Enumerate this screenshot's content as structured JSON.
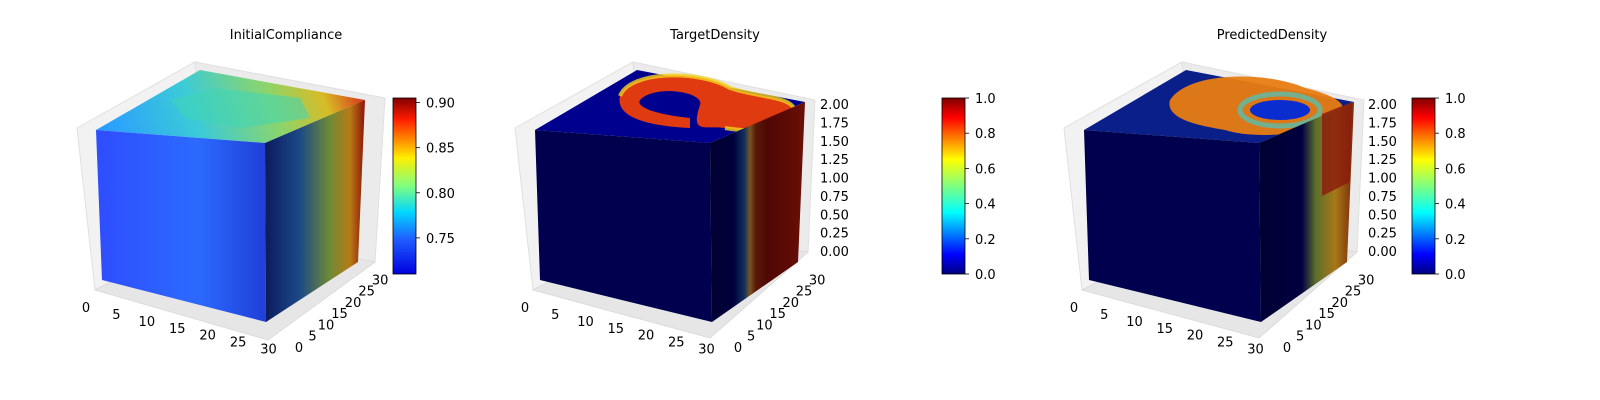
{
  "chart_data": [
    {
      "type": "heatmap",
      "subtype": "3d-voxel",
      "title": "InitialCompliance",
      "colormap": "jet",
      "x_ticks": [
        "0",
        "5",
        "10",
        "15",
        "20",
        "25",
        "30"
      ],
      "y_ticks": [
        "0",
        "5",
        "10",
        "15",
        "20",
        "25",
        "30"
      ],
      "z_ticks": [],
      "xlim": [
        0,
        32
      ],
      "ylim": [
        0,
        32
      ],
      "colorbar": {
        "ticks": [
          "0.75",
          "0.80",
          "0.85",
          "0.90"
        ],
        "range": [
          0.71,
          0.905
        ],
        "tick_values": [
          0.75,
          0.8,
          0.85,
          0.9
        ]
      },
      "grid": true
    },
    {
      "type": "heatmap",
      "subtype": "3d-voxel",
      "title": "TargetDensity",
      "colormap": "jet",
      "x_ticks": [
        "0",
        "5",
        "10",
        "15",
        "20",
        "25",
        "30"
      ],
      "y_ticks": [
        "0",
        "5",
        "10",
        "15",
        "20",
        "25",
        "30"
      ],
      "z_ticks": [
        "0.00",
        "0.25",
        "0.50",
        "0.75",
        "1.00",
        "1.25",
        "1.50",
        "1.75",
        "2.00"
      ],
      "xlim": [
        0,
        32
      ],
      "ylim": [
        0,
        32
      ],
      "zlim": [
        0,
        2
      ],
      "colorbar": {
        "ticks": [
          "0.0",
          "0.2",
          "0.4",
          "0.6",
          "0.8",
          "1.0"
        ],
        "range": [
          0,
          1
        ],
        "tick_values": [
          0,
          0.2,
          0.4,
          0.6,
          0.8,
          1.0
        ]
      },
      "grid": true
    },
    {
      "type": "heatmap",
      "subtype": "3d-voxel",
      "title": "PredictedDensity",
      "colormap": "jet",
      "x_ticks": [
        "0",
        "5",
        "10",
        "15",
        "20",
        "25",
        "30"
      ],
      "y_ticks": [
        "0",
        "5",
        "10",
        "15",
        "20",
        "25",
        "30"
      ],
      "z_ticks": [
        "0.00",
        "0.25",
        "0.50",
        "0.75",
        "1.00",
        "1.25",
        "1.50",
        "1.75",
        "2.00"
      ],
      "xlim": [
        0,
        32
      ],
      "ylim": [
        0,
        32
      ],
      "zlim": [
        0,
        2
      ],
      "colorbar": {
        "ticks": [
          "0.0",
          "0.2",
          "0.4",
          "0.6",
          "0.8",
          "1.0"
        ],
        "range": [
          0,
          1
        ],
        "tick_values": [
          0,
          0.2,
          0.4,
          0.6,
          0.8,
          1.0
        ]
      },
      "grid": true
    }
  ]
}
